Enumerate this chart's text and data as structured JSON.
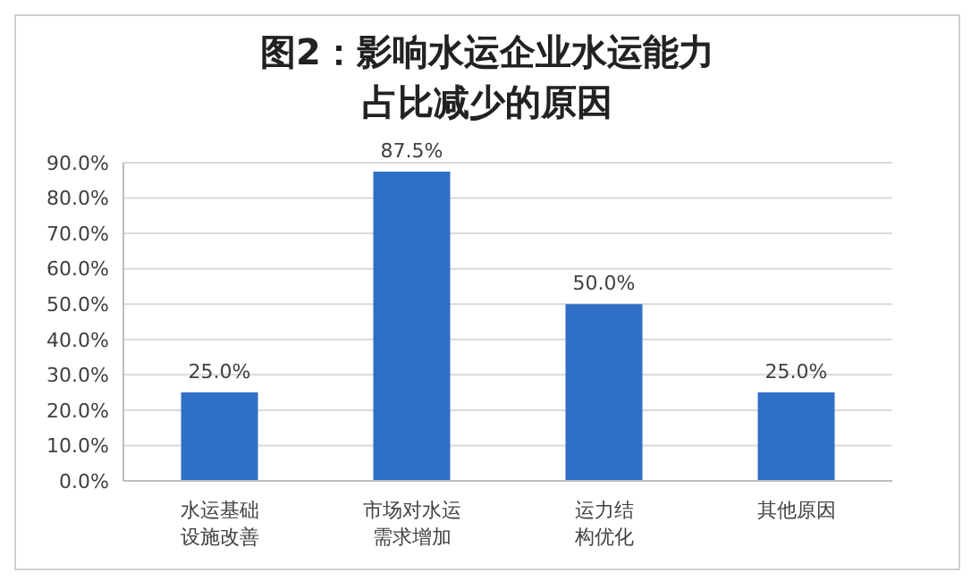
{
  "chart_data": {
    "type": "bar",
    "title": "图2：影响水运企业水运能力占比减少的原因",
    "categories": [
      "水运基础设施改善",
      "市场对水运需求增加",
      "运力结构优化",
      "其他原因"
    ],
    "values": [
      25,
      87.5,
      50,
      25
    ],
    "value_labels": [
      "25.0%",
      "87.5%",
      "50.0%",
      "25.0%"
    ],
    "color": "#2f6fc6",
    "ylim": [
      0,
      90
    ],
    "yticks": [
      {
        "value": 0,
        "label": "0.0%"
      },
      {
        "value": 10,
        "label": "10.0%"
      },
      {
        "value": 20,
        "label": "20.0%"
      },
      {
        "value": 30,
        "label": "30.0%"
      },
      {
        "value": 40,
        "label": "40.0%"
      },
      {
        "value": 50,
        "label": "50.0%"
      },
      {
        "value": 60,
        "label": "60.0%"
      },
      {
        "value": 70,
        "label": "70.0%"
      },
      {
        "value": 80,
        "label": "80.0%"
      },
      {
        "value": 90,
        "label": "90.0%"
      }
    ],
    "grid": "y"
  }
}
